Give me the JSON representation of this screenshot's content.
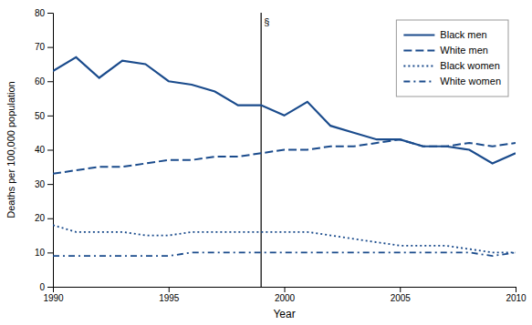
{
  "chart_data": {
    "type": "line",
    "x": [
      1990,
      1991,
      1992,
      1993,
      1994,
      1995,
      1996,
      1997,
      1998,
      1999,
      2000,
      2001,
      2002,
      2003,
      2004,
      2005,
      2006,
      2007,
      2008,
      2009,
      2010
    ],
    "series": [
      {
        "name": "Black men",
        "color": "#1a4b8c",
        "line_style": "solid",
        "values": [
          63,
          67,
          61,
          66,
          65,
          60,
          59,
          57,
          53,
          53,
          50,
          54,
          47,
          45,
          43,
          43,
          41,
          41,
          40,
          36,
          39
        ]
      },
      {
        "name": "White men",
        "color": "#1a4b8c",
        "line_style": "dashed",
        "values": [
          33,
          34,
          35,
          35,
          36,
          37,
          37,
          38,
          38,
          39,
          40,
          40,
          41,
          41,
          42,
          43,
          41,
          41,
          42,
          41,
          42
        ]
      },
      {
        "name": "Black women",
        "color": "#1a4b8c",
        "line_style": "dotted",
        "values": [
          18,
          16,
          16,
          16,
          15,
          15,
          16,
          16,
          16,
          16,
          16,
          16,
          15,
          14,
          13,
          12,
          12,
          12,
          11,
          10,
          10
        ]
      },
      {
        "name": "White women",
        "color": "#1a4b8c",
        "line_style": "dashdot",
        "values": [
          9,
          9,
          9,
          9,
          9,
          9,
          10,
          10,
          10,
          10,
          10,
          10,
          10,
          10,
          10,
          10,
          10,
          10,
          10,
          9,
          10
        ]
      }
    ],
    "annotations": [
      {
        "x": 1999,
        "text": "§"
      }
    ],
    "xlabel": "Year",
    "ylabel": "Deaths per 100,000 population",
    "xlim": [
      1990,
      2010
    ],
    "ylim": [
      0,
      80
    ],
    "xticks": [
      1990,
      1995,
      2000,
      2005,
      2010
    ],
    "yticks": [
      0,
      10,
      20,
      30,
      40,
      50,
      60,
      70,
      80
    ],
    "legend": "upper right",
    "grid": false
  }
}
